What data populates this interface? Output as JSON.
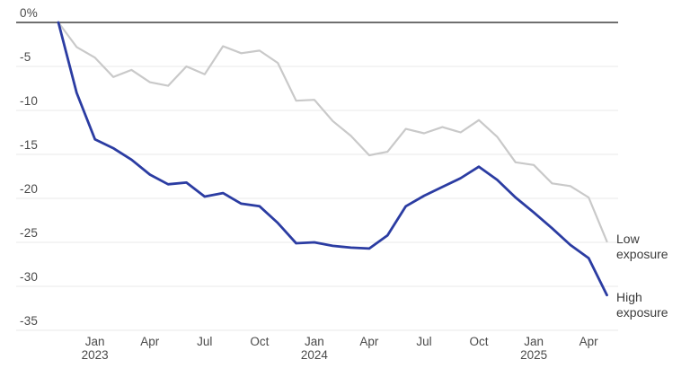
{
  "chart_data": {
    "type": "line",
    "title": "",
    "xlabel": "",
    "ylabel": "",
    "ylim": [
      -35,
      0
    ],
    "grid": "horizontal",
    "legend_position": "right-end-of-lines",
    "yticks": [
      0,
      -5,
      -10,
      -15,
      -20,
      -25,
      -30,
      -35
    ],
    "ytick_labels": [
      "0%",
      "-5",
      "-10",
      "-15",
      "-20",
      "-25",
      "-30",
      "-35"
    ],
    "x_ticks": [
      {
        "index": 2,
        "label": "Jan",
        "year": "2023"
      },
      {
        "index": 5,
        "label": "Apr",
        "year": ""
      },
      {
        "index": 8,
        "label": "Jul",
        "year": ""
      },
      {
        "index": 11,
        "label": "Oct",
        "year": ""
      },
      {
        "index": 14,
        "label": "Jan",
        "year": "2024"
      },
      {
        "index": 17,
        "label": "Apr",
        "year": ""
      },
      {
        "index": 20,
        "label": "Jul",
        "year": ""
      },
      {
        "index": 23,
        "label": "Oct",
        "year": ""
      },
      {
        "index": 26,
        "label": "Jan",
        "year": "2025"
      },
      {
        "index": 29,
        "label": "Apr",
        "year": ""
      }
    ],
    "categories": [
      "Nov 2022",
      "Dec 2022",
      "Jan 2023",
      "Feb 2023",
      "Mar 2023",
      "Apr 2023",
      "May 2023",
      "Jun 2023",
      "Jul 2023",
      "Aug 2023",
      "Sep 2023",
      "Oct 2023",
      "Nov 2023",
      "Dec 2023",
      "Jan 2024",
      "Feb 2024",
      "Mar 2024",
      "Apr 2024",
      "May 2024",
      "Jun 2024",
      "Jul 2024",
      "Aug 2024",
      "Sep 2024",
      "Oct 2024",
      "Nov 2024",
      "Dec 2024",
      "Jan 2025",
      "Feb 2025",
      "Mar 2025",
      "Apr 2025",
      "May 2025"
    ],
    "series": [
      {
        "name": "Low exposure",
        "color": "#c9c9c9",
        "values": [
          0,
          -2.8,
          -4.0,
          -6.2,
          -5.4,
          -6.8,
          -7.2,
          -5.0,
          -5.9,
          -2.7,
          -3.5,
          -3.2,
          -4.6,
          -8.9,
          -8.8,
          -11.2,
          -12.9,
          -15.1,
          -14.7,
          -12.1,
          -12.6,
          -11.9,
          -12.5,
          -11.1,
          -13.0,
          -15.9,
          -16.2,
          -18.3,
          -18.6,
          -19.9,
          -24.9
        ]
      },
      {
        "name": "High exposure",
        "color": "#2b3ca2",
        "values": [
          0,
          -8.0,
          -13.3,
          -14.3,
          -15.6,
          -17.3,
          -18.4,
          -18.2,
          -19.8,
          -19.4,
          -20.6,
          -20.9,
          -22.8,
          -25.1,
          -25.0,
          -25.4,
          -25.6,
          -25.7,
          -24.2,
          -20.9,
          -19.7,
          -18.7,
          -17.7,
          -16.4,
          -17.9,
          -19.9,
          -21.6,
          -23.4,
          -25.3,
          -26.8,
          -31.0
        ]
      }
    ],
    "colors": {
      "gridline": "#e9e9e9",
      "zero_line": "#6f6f6f",
      "axis_text": "#4a4a4a",
      "label_text": "#3a3a3a"
    }
  }
}
